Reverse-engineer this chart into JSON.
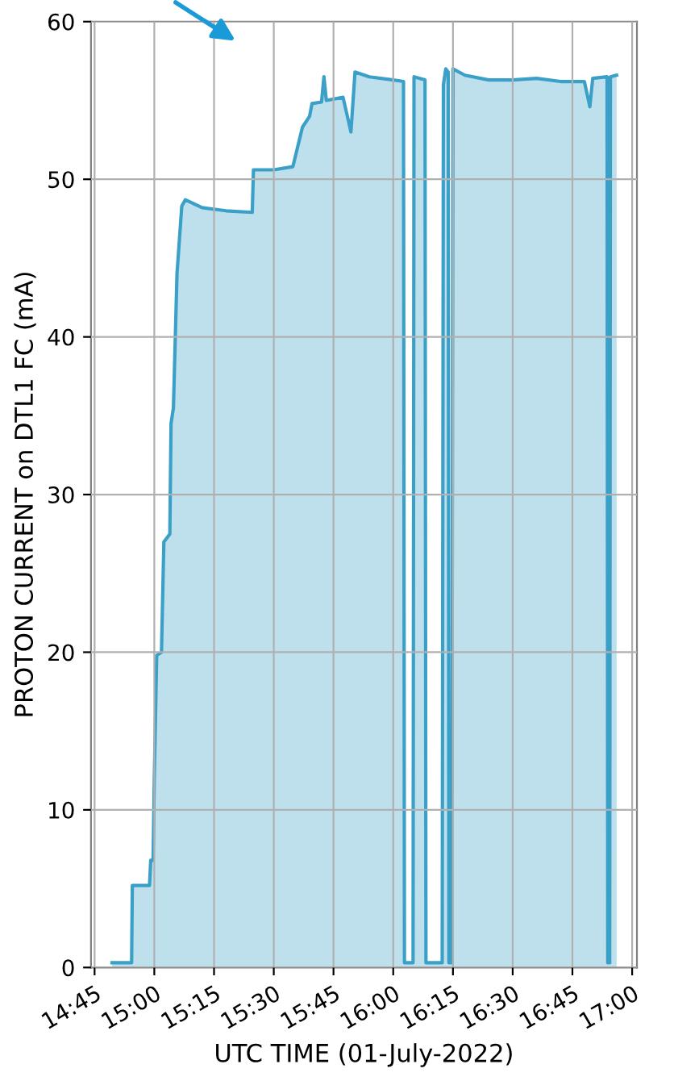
{
  "chart_data": {
    "type": "area",
    "xlabel": "UTC TIME (01-July-2022)",
    "ylabel": "PROTON CURRENT on DTL1 FC (mA)",
    "x": [
      14.823,
      14.905,
      14.908,
      14.98,
      14.985,
      14.995,
      15.0,
      15.01,
      15.03,
      15.04,
      15.065,
      15.07,
      15.08,
      15.095,
      15.115,
      15.13,
      15.2,
      15.3,
      15.41,
      15.415,
      15.5,
      15.58,
      15.62,
      15.65,
      15.66,
      15.7,
      15.71,
      15.72,
      15.79,
      15.823,
      15.84,
      15.9,
      16.0,
      16.043,
      16.047,
      16.083,
      16.087,
      16.133,
      16.137,
      16.205,
      16.21,
      16.22,
      16.23,
      16.233,
      16.245,
      16.25,
      16.3,
      16.4,
      16.5,
      16.6,
      16.7,
      16.8,
      16.823,
      16.835,
      16.895,
      16.898,
      16.906,
      16.909,
      16.935
    ],
    "series": [
      {
        "color": "#3aa0c8",
        "values": [
          0.3,
          0.3,
          5.2,
          5.2,
          6.8,
          6.8,
          12,
          19.8,
          20,
          27,
          27.5,
          34.5,
          35.5,
          44,
          48.3,
          48.7,
          48.2,
          48.0,
          47.9,
          50.6,
          50.6,
          50.8,
          53.3,
          54.0,
          54.8,
          54.9,
          56.5,
          55.0,
          55.2,
          53.0,
          56.8,
          56.5,
          56.3,
          56.2,
          0.3,
          0.3,
          56.5,
          56.3,
          0.3,
          0.3,
          56.0,
          57.0,
          56.8,
          0.3,
          0.3,
          57.0,
          56.6,
          56.3,
          56.3,
          56.4,
          56.2,
          56.2,
          54.6,
          56.4,
          56.5,
          0.3,
          0.3,
          56.5,
          56.6
        ]
      }
    ],
    "xlim": [
      14.735,
      17.02
    ],
    "xticks": [
      {
        "value": 14.75,
        "label": "14:45"
      },
      {
        "value": 15.0,
        "label": "15:00"
      },
      {
        "value": 15.25,
        "label": "15:15"
      },
      {
        "value": 15.5,
        "label": "15:30"
      },
      {
        "value": 15.75,
        "label": "15:45"
      },
      {
        "value": 16.0,
        "label": "16:00"
      },
      {
        "value": 16.25,
        "label": "16:15"
      },
      {
        "value": 16.5,
        "label": "16:30"
      },
      {
        "value": 16.75,
        "label": "16:45"
      },
      {
        "value": 17.0,
        "label": "17:00"
      }
    ],
    "ylim": [
      0,
      60
    ],
    "yticks": [
      0,
      10,
      20,
      30,
      40,
      50,
      60
    ],
    "grid": true
  }
}
